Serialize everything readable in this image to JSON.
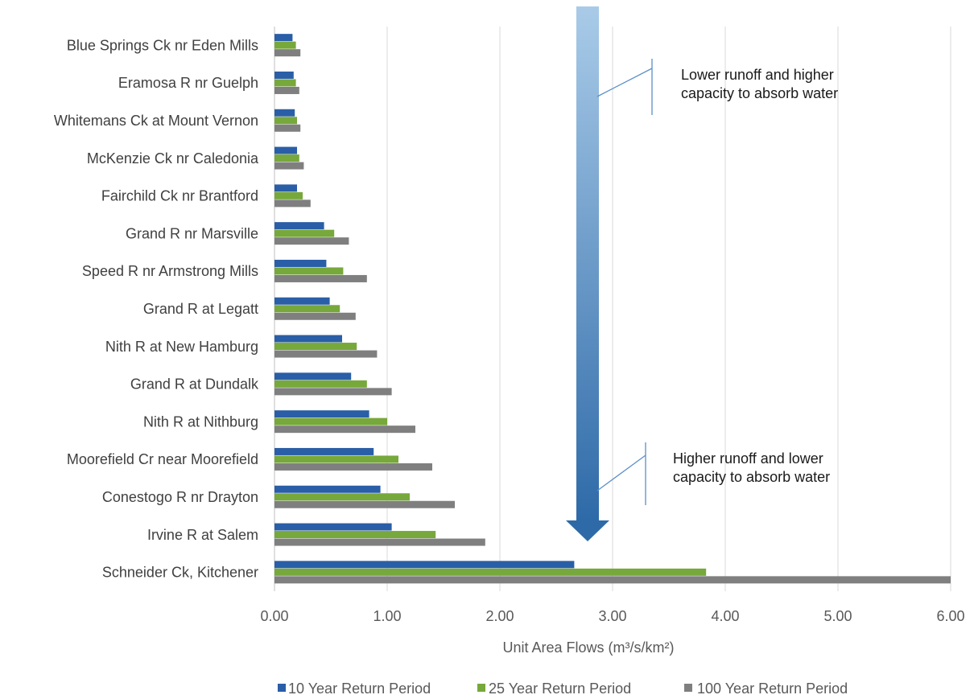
{
  "chart_data": {
    "type": "bar",
    "orientation": "horizontal",
    "categories": [
      "Blue Springs Ck nr Eden Mills",
      "Eramosa R nr Guelph",
      "Whitemans Ck at Mount Vernon",
      "McKenzie Ck nr Caledonia",
      "Fairchild Ck nr Brantford",
      "Grand R nr Marsville",
      "Speed R nr Armstrong Mills",
      "Grand R at Legatt",
      "Nith R at New Hamburg",
      "Grand R at Dundalk",
      "Nith R at Nithburg",
      "Moorefield Cr near Moorefield",
      "Conestogo R nr Drayton",
      "Irvine R at Salem",
      "Schneider Ck, Kitchener"
    ],
    "series": [
      {
        "name": "10 Year Return Period",
        "color": "#2a5ea7",
        "values": [
          0.16,
          0.17,
          0.18,
          0.2,
          0.2,
          0.44,
          0.46,
          0.49,
          0.6,
          0.68,
          0.84,
          0.88,
          0.94,
          1.04,
          2.66
        ]
      },
      {
        "name": "25 Year Return Period",
        "color": "#77a83b",
        "values": [
          0.19,
          0.19,
          0.2,
          0.22,
          0.25,
          0.53,
          0.61,
          0.58,
          0.73,
          0.82,
          1.0,
          1.1,
          1.2,
          1.43,
          3.83
        ]
      },
      {
        "name": "100 Year Return Period",
        "color": "#7f7f7f",
        "values": [
          0.23,
          0.22,
          0.23,
          0.26,
          0.32,
          0.66,
          0.82,
          0.72,
          0.91,
          1.04,
          1.25,
          1.4,
          1.6,
          1.87,
          6.0
        ]
      }
    ],
    "xlim": [
      0,
      6
    ],
    "xticks": [
      "0.00",
      "1.00",
      "2.00",
      "3.00",
      "4.00",
      "5.00",
      "6.00"
    ],
    "xlabel": "Unit Area Flows (m³/s/km²)",
    "grid": "vertical",
    "legend_position": "bottom",
    "annotations": [
      {
        "text_lines": [
          "Lower runoff and higher",
          "capacity to absorb water"
        ]
      },
      {
        "text_lines": [
          "Higher runoff and lower",
          "capacity to absorb water"
        ]
      }
    ],
    "arrow": {
      "direction": "down",
      "gradient": [
        "#a9cbe8",
        "#2e6aa8"
      ]
    }
  }
}
